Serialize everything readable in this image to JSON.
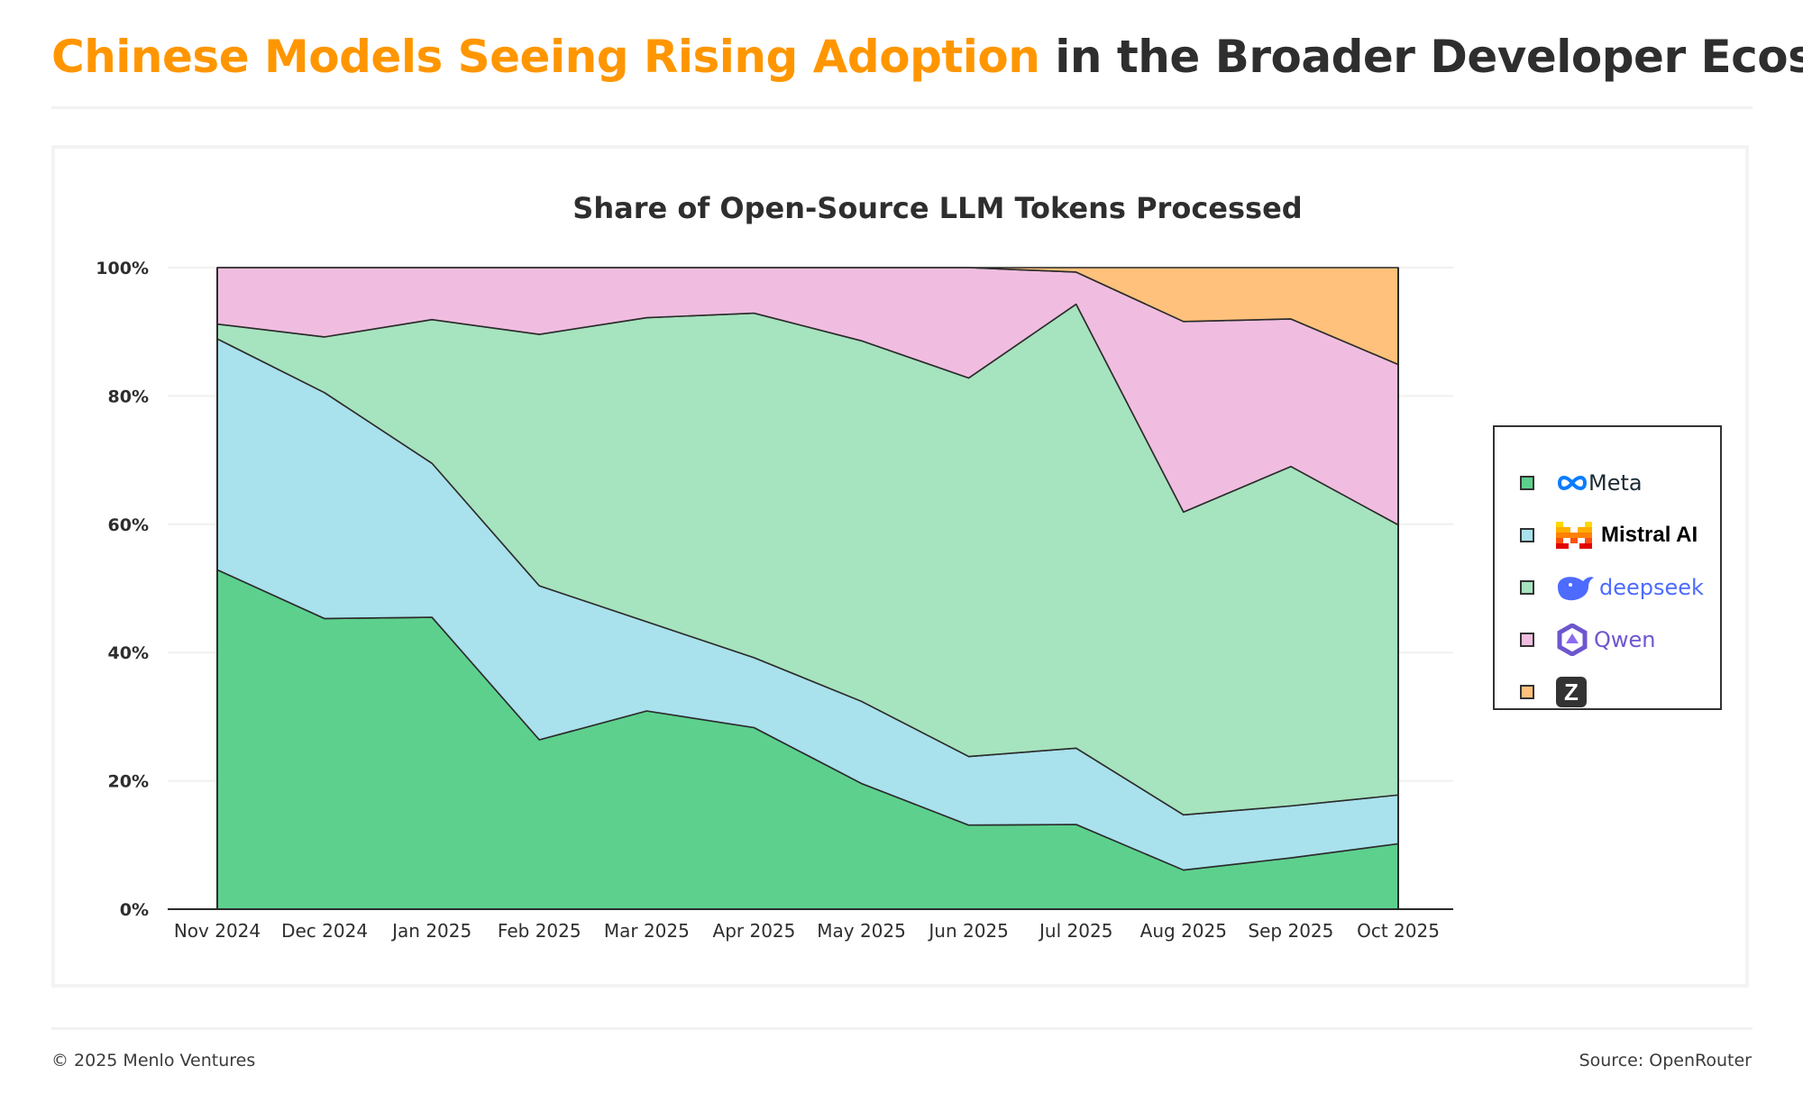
{
  "header": {
    "title_accent": "Chinese Models Seeing Rising Adoption",
    "title_rest": " in the Broader Developer Ecosystem",
    "accent_color": "#ff9600"
  },
  "footer": {
    "copyright": "© 2025 Menlo Ventures",
    "source": "Source: OpenRouter"
  },
  "legend": [
    {
      "name": "Meta",
      "label": "Meta",
      "icon": "meta-infinity-logo",
      "color": "#5dd08e"
    },
    {
      "name": "Mistral AI",
      "label": "Mistral AI",
      "icon": "mistral-logo",
      "color": "#a9e1ec"
    },
    {
      "name": "DeepSeek",
      "label": "deepseek",
      "icon": "deepseek-whale-logo",
      "color": "#a6e3bf"
    },
    {
      "name": "Qwen",
      "label": "Qwen",
      "icon": "qwen-logo",
      "color": "#f0bde0"
    },
    {
      "name": "Z.ai",
      "label": "",
      "icon": "z-logo",
      "color": "#ffc17b"
    }
  ],
  "chart_data": {
    "type": "area",
    "stacked": true,
    "normalized": true,
    "title": "Share of Open-Source LLM Tokens Processed",
    "xlabel": "",
    "ylabel": "",
    "ylim": [
      0,
      100
    ],
    "yticks": [
      "0%",
      "20%",
      "40%",
      "60%",
      "80%",
      "100%"
    ],
    "ytick_values": [
      0,
      20,
      40,
      60,
      80,
      100
    ],
    "grid": true,
    "legend_position": "right",
    "categories": [
      "Nov 2024",
      "Dec 2024",
      "Jan 2025",
      "Feb 2025",
      "Mar 2025",
      "Apr 2025",
      "May 2025",
      "Jun 2025",
      "Jul 2025",
      "Aug 2025",
      "Sep 2025",
      "Oct 2025"
    ],
    "series": [
      {
        "name": "Meta",
        "color": "#5dd08e",
        "values": [
          52.9,
          45.3,
          45.5,
          26.4,
          30.9,
          28.3,
          19.6,
          13.1,
          13.2,
          6.1,
          8.0,
          10.2
        ]
      },
      {
        "name": "Mistral AI",
        "color": "#a9e1ec",
        "values": [
          36.0,
          35.2,
          24.0,
          24.0,
          13.9,
          10.9,
          12.8,
          10.7,
          11.9,
          8.6,
          8.1,
          7.6
        ]
      },
      {
        "name": "DeepSeek",
        "color": "#a6e3bf",
        "values": [
          2.3,
          8.7,
          22.4,
          39.2,
          47.4,
          53.7,
          56.2,
          59.0,
          69.2,
          47.2,
          52.9,
          42.1
        ]
      },
      {
        "name": "Qwen",
        "color": "#f0bde0",
        "values": [
          8.8,
          10.8,
          8.1,
          10.4,
          7.8,
          7.1,
          11.4,
          17.2,
          5.0,
          29.7,
          23.0,
          25.0
        ]
      },
      {
        "name": "Z.ai",
        "color": "#ffc17b",
        "values": [
          0,
          0,
          0,
          0,
          0,
          0,
          0,
          0,
          0.7,
          8.4,
          8.0,
          15.1
        ]
      }
    ]
  }
}
